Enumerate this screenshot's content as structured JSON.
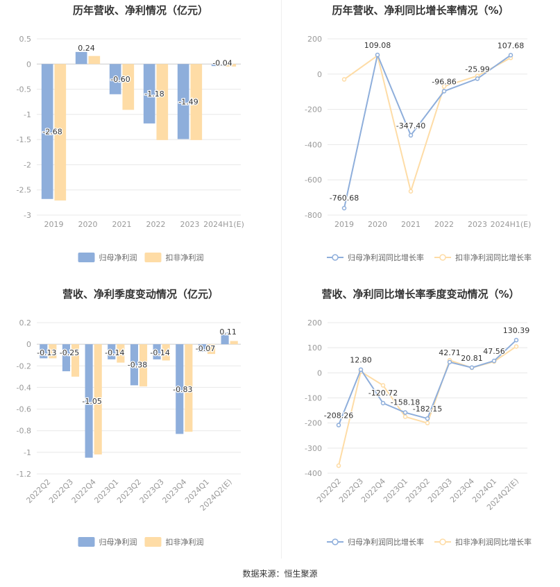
{
  "footer": {
    "source": "数据来源：恒生聚源"
  },
  "colors": {
    "series1": "#8eaedb",
    "series2": "#fedca6",
    "grid": "#e8e8e8",
    "axis": "#999999",
    "label": "#333333"
  },
  "chart_data": [
    {
      "type": "bar",
      "title": "历年营收、净利情况（亿元）",
      "categories": [
        "2019",
        "2020",
        "2021",
        "2022",
        "2023",
        "2024H1(E)"
      ],
      "ylim": [
        -3,
        0.5
      ],
      "yticks": [
        "0.5",
        "0",
        "-0.5",
        "-1",
        "-1.5",
        "-2",
        "-2.5",
        "-3"
      ],
      "ytick_values": [
        0.5,
        0,
        -0.5,
        -1,
        -1.5,
        -2,
        -2.5,
        -3
      ],
      "series": [
        {
          "name": "归母净利润",
          "values": [
            -2.68,
            0.24,
            -0.6,
            -1.18,
            -1.49,
            -0.04
          ],
          "labels": [
            "-2.68",
            "0.24",
            "-0.60",
            "-1.18",
            "-1.49",
            "-0.04"
          ]
        },
        {
          "name": "扣非净利润",
          "values": [
            -2.71,
            0.16,
            -0.91,
            -1.51,
            -1.51,
            -0.05
          ]
        }
      ],
      "legend": "bottom"
    },
    {
      "type": "line",
      "title": "历年营收、净利同比增长率情况（%）",
      "categories": [
        "2019",
        "2020",
        "2021",
        "2022",
        "2023",
        "2024H1(E)"
      ],
      "ylim": [
        -800,
        200
      ],
      "yticks": [
        "200",
        "0",
        "-200",
        "-400",
        "-600",
        "-800"
      ],
      "ytick_values": [
        200,
        0,
        -200,
        -400,
        -600,
        -800
      ],
      "series": [
        {
          "name": "归母净利润同比增长率",
          "values": [
            -760.68,
            109.08,
            -347.4,
            -96.86,
            -25.99,
            107.68
          ],
          "labels": [
            "-760.68",
            "109.08",
            "-347.40",
            "-96.86",
            "-25.99",
            "107.68"
          ]
        },
        {
          "name": "扣非净利润同比增长率",
          "values": [
            -30,
            105,
            -665,
            -70,
            -10,
            92
          ]
        }
      ],
      "legend": "bottom"
    },
    {
      "type": "bar",
      "title": "营收、净利季度变动情况（亿元）",
      "categories": [
        "2022Q2",
        "2022Q3",
        "2022Q4",
        "2023Q1",
        "2023Q2",
        "2023Q3",
        "2023Q4",
        "2024Q1",
        "2024Q2(E)"
      ],
      "ylim": [
        -1.2,
        0.2
      ],
      "yticks": [
        "0.2",
        "0",
        "-0.2",
        "-0.4",
        "-0.6",
        "-0.8",
        "-1",
        "-1.2"
      ],
      "ytick_values": [
        0.2,
        0,
        -0.2,
        -0.4,
        -0.6,
        -0.8,
        -1,
        -1.2
      ],
      "series": [
        {
          "name": "归母净利润",
          "values": [
            -0.13,
            -0.25,
            -1.05,
            -0.14,
            -0.38,
            -0.14,
            -0.83,
            -0.07,
            0.11
          ],
          "labels": [
            "-0.13",
            "-0.25",
            "-1.05",
            "-0.14",
            "-0.38",
            "-0.14",
            "-0.83",
            "-0.07",
            "0.11"
          ]
        },
        {
          "name": "扣非净利润",
          "values": [
            -0.13,
            -0.3,
            -1.02,
            -0.17,
            -0.39,
            -0.15,
            -0.81,
            -0.09,
            0.03
          ]
        }
      ],
      "legend": "bottom"
    },
    {
      "type": "line",
      "title": "营收、净利同比增长率季度变动情况（%）",
      "categories": [
        "2022Q2",
        "2022Q3",
        "2022Q4",
        "2023Q1",
        "2023Q2",
        "2023Q3",
        "2023Q4",
        "2024Q1",
        "2024Q2(E)"
      ],
      "ylim": [
        -400,
        200
      ],
      "yticks": [
        "200",
        "100",
        "0",
        "-100",
        "-200",
        "-300",
        "-400"
      ],
      "ytick_values": [
        200,
        100,
        0,
        -100,
        -200,
        -300,
        -400
      ],
      "series": [
        {
          "name": "归母净利润同比增长率",
          "values": [
            -208.26,
            12.8,
            -120.72,
            -158.18,
            -182.15,
            42.71,
            20.81,
            47.56,
            130.39
          ],
          "labels": [
            "-208.26",
            "12.80",
            "-120.72",
            "-158.18",
            "-182.15",
            "42.71",
            "20.81",
            "47.56",
            "130.39"
          ]
        },
        {
          "name": "扣非净利润同比增长率",
          "values": [
            -370,
            5,
            -50,
            -175,
            -200,
            50,
            20,
            45,
            105
          ]
        }
      ],
      "legend": "bottom"
    }
  ]
}
